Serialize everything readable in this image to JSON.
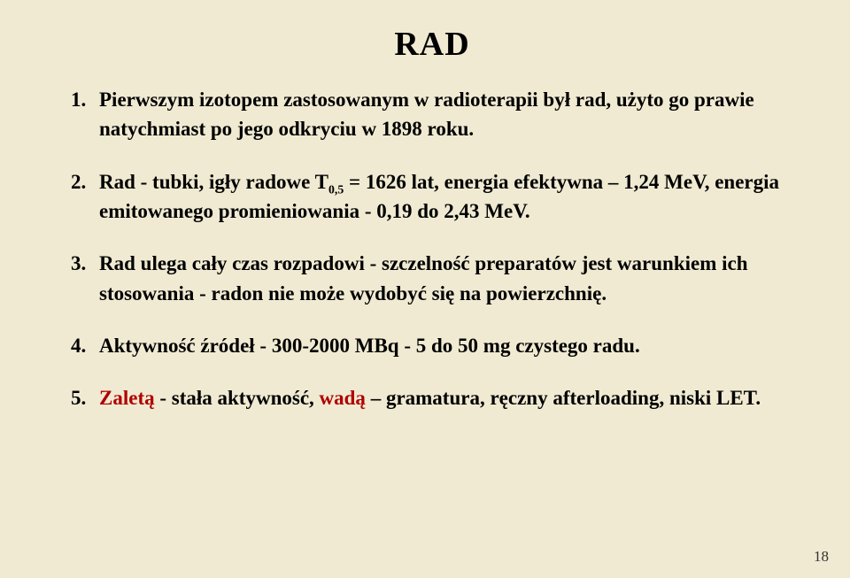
{
  "background_color": "#f0ead2",
  "text_color": "#000000",
  "accent_color": "#b00000",
  "title_fontsize": 38,
  "body_fontsize": 23,
  "page_number_fontsize": 17,
  "title": "RAD",
  "items": [
    {
      "num": "1.",
      "text": "Pierwszym izotopem zastosowanym w radioterapii był rad, użyto go prawie natychmiast po jego odkryciu w 1898 roku."
    },
    {
      "num": "2.",
      "pre": "Rad - tubki, igły radowe   T",
      "sub": "0,5",
      "post": " = 1626 lat, energia efektywna – 1,24 MeV, energia emitowanego promieniowania - 0,19 do 2,43 MeV."
    },
    {
      "num": "3.",
      "text": "Rad ulega cały czas rozpadowi - szczelność preparatów jest warunkiem ich stosowania - radon nie może wydobyć się na powierzchnię."
    },
    {
      "num": "4.",
      "text": "Aktywność źródeł - 300-2000 MBq - 5 do 50 mg czystego radu."
    },
    {
      "num": "5.",
      "pre_accent": "Zaletą",
      "mid": " - stała aktywność, ",
      "accent2": "wadą",
      "post": " – gramatura, ręczny afterloading, niski LET."
    }
  ],
  "page_number": "18"
}
